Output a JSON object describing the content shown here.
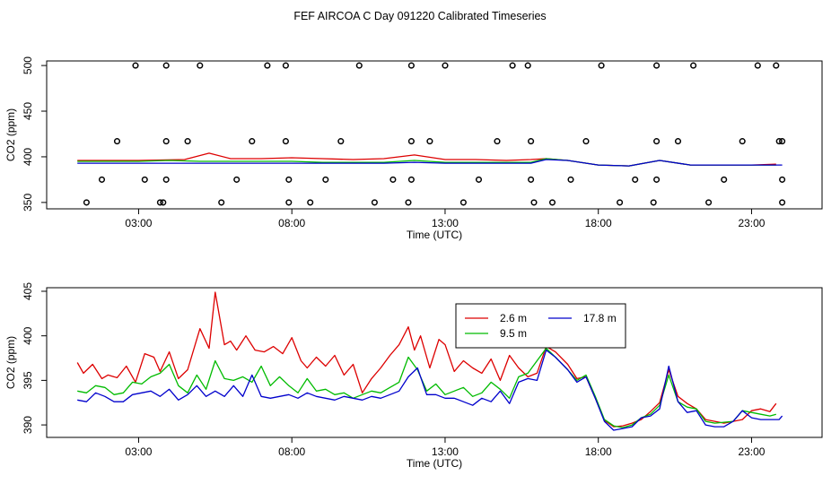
{
  "title": "FEF AIRCOA C  Day 091220  Calibrated Timeseries",
  "colors": {
    "s26": "#dd0000",
    "s95": "#00bb00",
    "s178": "#0000cc",
    "axis": "#000000"
  },
  "chart_data": [
    {
      "type": "line",
      "xlabel": "Time (UTC)",
      "ylabel": "CO2 (ppm)",
      "xlim": [
        0,
        25.3
      ],
      "ylim": [
        343,
        505
      ],
      "xticks": [
        {
          "v": 3,
          "label": "03:00"
        },
        {
          "v": 8,
          "label": "08:00"
        },
        {
          "v": 13,
          "label": "13:00"
        },
        {
          "v": 18,
          "label": "18:00"
        },
        {
          "v": 23,
          "label": "23:00"
        }
      ],
      "yticks": [
        {
          "v": 350,
          "label": "350"
        },
        {
          "v": 400,
          "label": "400"
        },
        {
          "v": 450,
          "label": "450"
        },
        {
          "v": 500,
          "label": "500"
        }
      ],
      "calibration_points": [
        {
          "x": 1.3,
          "y": 350
        },
        {
          "x": 3.7,
          "y": 350
        },
        {
          "x": 3.8,
          "y": 350
        },
        {
          "x": 5.7,
          "y": 350
        },
        {
          "x": 7.9,
          "y": 350
        },
        {
          "x": 8.6,
          "y": 350
        },
        {
          "x": 10.7,
          "y": 350
        },
        {
          "x": 11.8,
          "y": 350
        },
        {
          "x": 13.6,
          "y": 350
        },
        {
          "x": 15.9,
          "y": 350
        },
        {
          "x": 16.5,
          "y": 350
        },
        {
          "x": 18.7,
          "y": 350
        },
        {
          "x": 19.8,
          "y": 350
        },
        {
          "x": 21.6,
          "y": 350
        },
        {
          "x": 24.0,
          "y": 350
        },
        {
          "x": 1.8,
          "y": 375
        },
        {
          "x": 3.2,
          "y": 375
        },
        {
          "x": 3.9,
          "y": 375
        },
        {
          "x": 6.2,
          "y": 375
        },
        {
          "x": 7.9,
          "y": 375
        },
        {
          "x": 9.1,
          "y": 375
        },
        {
          "x": 11.3,
          "y": 375
        },
        {
          "x": 11.9,
          "y": 375
        },
        {
          "x": 14.1,
          "y": 375
        },
        {
          "x": 15.8,
          "y": 375
        },
        {
          "x": 17.1,
          "y": 375
        },
        {
          "x": 19.2,
          "y": 375
        },
        {
          "x": 19.9,
          "y": 375
        },
        {
          "x": 22.1,
          "y": 375
        },
        {
          "x": 24.0,
          "y": 375
        },
        {
          "x": 2.3,
          "y": 417
        },
        {
          "x": 3.9,
          "y": 417
        },
        {
          "x": 4.6,
          "y": 417
        },
        {
          "x": 6.7,
          "y": 417
        },
        {
          "x": 7.8,
          "y": 417
        },
        {
          "x": 9.6,
          "y": 417
        },
        {
          "x": 11.9,
          "y": 417
        },
        {
          "x": 12.5,
          "y": 417
        },
        {
          "x": 14.7,
          "y": 417
        },
        {
          "x": 15.8,
          "y": 417
        },
        {
          "x": 17.6,
          "y": 417
        },
        {
          "x": 19.9,
          "y": 417
        },
        {
          "x": 20.6,
          "y": 417
        },
        {
          "x": 22.7,
          "y": 417
        },
        {
          "x": 23.9,
          "y": 417
        },
        {
          "x": 24.0,
          "y": 417
        },
        {
          "x": 2.9,
          "y": 500
        },
        {
          "x": 3.9,
          "y": 500
        },
        {
          "x": 5.0,
          "y": 500
        },
        {
          "x": 7.2,
          "y": 500
        },
        {
          "x": 7.8,
          "y": 500
        },
        {
          "x": 10.2,
          "y": 500
        },
        {
          "x": 11.9,
          "y": 500
        },
        {
          "x": 13.0,
          "y": 500
        },
        {
          "x": 15.2,
          "y": 500
        },
        {
          "x": 15.7,
          "y": 500
        },
        {
          "x": 18.1,
          "y": 500
        },
        {
          "x": 19.9,
          "y": 500
        },
        {
          "x": 21.1,
          "y": 500
        },
        {
          "x": 23.2,
          "y": 500
        },
        {
          "x": 23.8,
          "y": 500
        }
      ],
      "series": [
        {
          "name": "2.6 m",
          "color_key": "s26",
          "x": [
            1,
            3,
            4.5,
            5.3,
            6,
            7,
            8,
            9,
            10,
            11,
            12,
            13,
            14,
            15,
            15.8,
            16.3,
            17,
            18,
            19,
            20,
            21,
            22,
            23,
            23.8
          ],
          "values": [
            396,
            396,
            397,
            404,
            398,
            398,
            399,
            398,
            397,
            398,
            402,
            397,
            397,
            396,
            397,
            398,
            396,
            391,
            390,
            396,
            391,
            391,
            391,
            392
          ]
        },
        {
          "name": "9.5 m",
          "color_key": "s95",
          "x": [
            1,
            3,
            4,
            5,
            6,
            7,
            8,
            9,
            10,
            11,
            12,
            13,
            14,
            15,
            15.8,
            16.3,
            17,
            18,
            19,
            20,
            21,
            22,
            23,
            23.8
          ],
          "values": [
            395,
            395,
            396,
            395,
            395,
            395,
            395,
            394,
            394,
            394,
            396,
            394,
            394,
            394,
            394,
            398,
            396,
            391,
            390,
            396,
            391,
            391,
            391,
            391
          ]
        },
        {
          "name": "17.8 m",
          "color_key": "s178",
          "x": [
            1,
            3,
            5,
            7,
            9,
            11,
            12,
            13,
            14,
            15,
            15.8,
            16.3,
            17,
            18,
            19,
            20,
            21,
            22,
            23,
            24
          ],
          "values": [
            393,
            393,
            393,
            393,
            393,
            393,
            394,
            393,
            393,
            393,
            393,
            397,
            396,
            391,
            390,
            396,
            391,
            391,
            391,
            391
          ]
        }
      ]
    },
    {
      "type": "line",
      "xlabel": "Time (UTC)",
      "ylabel": "CO2 (ppm)",
      "xlim": [
        0,
        25.3
      ],
      "ylim": [
        388.6,
        405.4
      ],
      "xticks": [
        {
          "v": 3,
          "label": "03:00"
        },
        {
          "v": 8,
          "label": "08:00"
        },
        {
          "v": 13,
          "label": "13:00"
        },
        {
          "v": 18,
          "label": "18:00"
        },
        {
          "v": 23,
          "label": "23:00"
        }
      ],
      "yticks": [
        {
          "v": 390,
          "label": "390"
        },
        {
          "v": 395,
          "label": "395"
        },
        {
          "v": 400,
          "label": "400"
        },
        {
          "v": 405,
          "label": "405"
        }
      ],
      "legend": {
        "position": "top-center",
        "entries": [
          "2.6 m",
          "9.5 m",
          "17.8 m"
        ]
      },
      "series": [
        {
          "name": "2.6 m",
          "color_key": "s26",
          "x": [
            1.0,
            1.2,
            1.5,
            1.8,
            2.0,
            2.3,
            2.6,
            2.9,
            3.2,
            3.5,
            3.7,
            4.0,
            4.3,
            4.6,
            5.0,
            5.3,
            5.5,
            5.8,
            6.0,
            6.2,
            6.5,
            6.8,
            7.1,
            7.4,
            7.7,
            8.0,
            8.3,
            8.5,
            8.8,
            9.1,
            9.4,
            9.7,
            10.0,
            10.3,
            10.6,
            10.9,
            11.2,
            11.5,
            11.8,
            12.0,
            12.2,
            12.5,
            12.8,
            13.0,
            13.3,
            13.6,
            13.9,
            14.2,
            14.5,
            14.8,
            15.1,
            15.4,
            15.7,
            16.0,
            16.3,
            16.6,
            17.0,
            17.3,
            17.6,
            17.9,
            18.2,
            18.5,
            18.8,
            19.1,
            19.4,
            19.7,
            20.0,
            20.3,
            20.6,
            20.9,
            21.2,
            21.5,
            21.8,
            22.1,
            22.4,
            22.7,
            23.0,
            23.3,
            23.6,
            23.8
          ],
          "values": [
            397,
            395.8,
            396.8,
            395.2,
            395.6,
            395.3,
            396.6,
            394.8,
            398,
            397.6,
            396,
            398.2,
            395.2,
            396.2,
            400.8,
            398.6,
            404.9,
            399,
            399.4,
            398.4,
            400,
            398.4,
            398.2,
            398.8,
            398,
            399.8,
            397.2,
            396.4,
            397.6,
            396.6,
            397.8,
            395.6,
            396.8,
            393.6,
            395.2,
            396.4,
            397.8,
            399,
            401,
            398.4,
            400,
            396.4,
            399.6,
            399,
            396,
            397.2,
            396.4,
            395.8,
            397.4,
            395,
            397.8,
            396.4,
            395.4,
            395.8,
            398.8,
            398.2,
            396.8,
            395.2,
            395.4,
            393,
            390.5,
            389.8,
            389.9,
            390.2,
            390.6,
            391.5,
            392.5,
            396.2,
            393.2,
            392.4,
            391.8,
            390.6,
            390.4,
            390.2,
            390.4,
            390.6,
            391.6,
            391.8,
            391.5,
            392.4
          ]
        },
        {
          "name": "9.5 m",
          "color_key": "s95",
          "x": [
            1.0,
            1.3,
            1.6,
            1.9,
            2.2,
            2.5,
            2.8,
            3.1,
            3.4,
            3.7,
            4.0,
            4.3,
            4.6,
            4.9,
            5.2,
            5.5,
            5.8,
            6.1,
            6.4,
            6.7,
            7.0,
            7.3,
            7.6,
            7.9,
            8.2,
            8.5,
            8.8,
            9.1,
            9.4,
            9.7,
            10.0,
            10.3,
            10.6,
            10.9,
            11.2,
            11.5,
            11.8,
            12.1,
            12.4,
            12.7,
            13.0,
            13.3,
            13.6,
            13.9,
            14.2,
            14.5,
            14.8,
            15.1,
            15.4,
            15.7,
            16.0,
            16.3,
            16.6,
            17.0,
            17.3,
            17.6,
            17.9,
            18.2,
            18.5,
            18.8,
            19.1,
            19.4,
            19.7,
            20.0,
            20.3,
            20.6,
            20.9,
            21.2,
            21.5,
            21.8,
            22.1,
            22.4,
            22.7,
            23.0,
            23.3,
            23.6,
            23.8
          ],
          "values": [
            393.8,
            393.6,
            394.4,
            394.2,
            393.4,
            393.6,
            394.8,
            394.6,
            395.4,
            395.8,
            396.8,
            394.4,
            393.6,
            395.6,
            394,
            397.2,
            395.2,
            395,
            395.4,
            394.8,
            396.6,
            394.4,
            395.4,
            394.4,
            393.6,
            395.2,
            393.8,
            394,
            393.4,
            393.6,
            393,
            393.4,
            393.8,
            393.6,
            394.2,
            394.8,
            397.6,
            396.2,
            393.8,
            394.6,
            393.4,
            393.8,
            394.2,
            393.2,
            393.6,
            394.8,
            394,
            393,
            395.4,
            395.8,
            397.2,
            398.6,
            397.6,
            396.2,
            395,
            395.6,
            393.2,
            390.6,
            389.9,
            389.7,
            390,
            390.8,
            391.2,
            392.2,
            395.6,
            392.6,
            392,
            391.8,
            390.4,
            390.2,
            390.3,
            390.4,
            391.6,
            391.4,
            391.2,
            391,
            391.2
          ]
        },
        {
          "name": "17.8 m",
          "color_key": "s178",
          "x": [
            1.0,
            1.3,
            1.6,
            1.9,
            2.2,
            2.5,
            2.8,
            3.1,
            3.4,
            3.7,
            4.0,
            4.3,
            4.6,
            4.9,
            5.2,
            5.5,
            5.8,
            6.1,
            6.4,
            6.7,
            7.0,
            7.3,
            7.6,
            7.9,
            8.2,
            8.5,
            8.8,
            9.1,
            9.4,
            9.7,
            10.0,
            10.3,
            10.6,
            10.9,
            11.2,
            11.5,
            11.8,
            12.1,
            12.4,
            12.7,
            13.0,
            13.3,
            13.6,
            13.9,
            14.2,
            14.5,
            14.8,
            15.1,
            15.4,
            15.7,
            16.0,
            16.3,
            16.6,
            17.0,
            17.3,
            17.6,
            17.9,
            18.2,
            18.5,
            18.8,
            19.1,
            19.4,
            19.7,
            20.0,
            20.3,
            20.6,
            20.9,
            21.2,
            21.5,
            21.8,
            22.1,
            22.4,
            22.7,
            23.0,
            23.3,
            23.6,
            23.9,
            24.0
          ],
          "values": [
            392.8,
            392.6,
            393.6,
            393.2,
            392.6,
            392.6,
            393.4,
            393.6,
            393.8,
            393.2,
            394,
            392.8,
            393.4,
            394.4,
            393.2,
            393.8,
            393.2,
            394.4,
            393.2,
            395.6,
            393.2,
            393,
            393.2,
            393.4,
            393,
            393.6,
            393.2,
            393,
            392.8,
            393.2,
            393,
            392.8,
            393.2,
            393,
            393.4,
            393.8,
            395.4,
            396.4,
            393.4,
            393.4,
            393,
            393,
            392.6,
            392.2,
            393,
            392.6,
            393.8,
            392.4,
            394.8,
            395.2,
            395,
            398.4,
            397.6,
            396.2,
            394.8,
            395.4,
            393,
            390.4,
            389.4,
            389.6,
            389.8,
            390.8,
            391,
            391.8,
            396.6,
            392.6,
            391.4,
            391.6,
            390,
            389.8,
            389.8,
            390.4,
            391.6,
            390.8,
            390.6,
            390.6,
            390.6,
            391
          ]
        }
      ]
    }
  ]
}
